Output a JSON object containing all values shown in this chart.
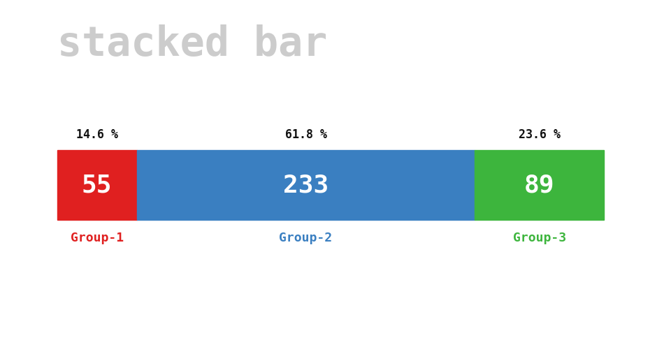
{
  "title": "stacked bar",
  "title_color": "#cccccc",
  "title_fontsize": 42,
  "title_font": "monospace",
  "groups": [
    "Group-1",
    "Group-2",
    "Group-3"
  ],
  "values": [
    55,
    233,
    89
  ],
  "percentages": [
    "14.6 %",
    "61.8 %",
    "23.6 %"
  ],
  "colors": [
    "#e02020",
    "#3a7fc1",
    "#3db53d"
  ],
  "label_colors": [
    "#e02020",
    "#3a7fc1",
    "#3db53d"
  ],
  "bar_label_color": "#ffffff",
  "bar_label_fontsize": 26,
  "pct_fontsize": 12,
  "group_label_fontsize": 13,
  "bg_color": "#ffffff",
  "fig_width": 9.6,
  "fig_height": 5.0
}
